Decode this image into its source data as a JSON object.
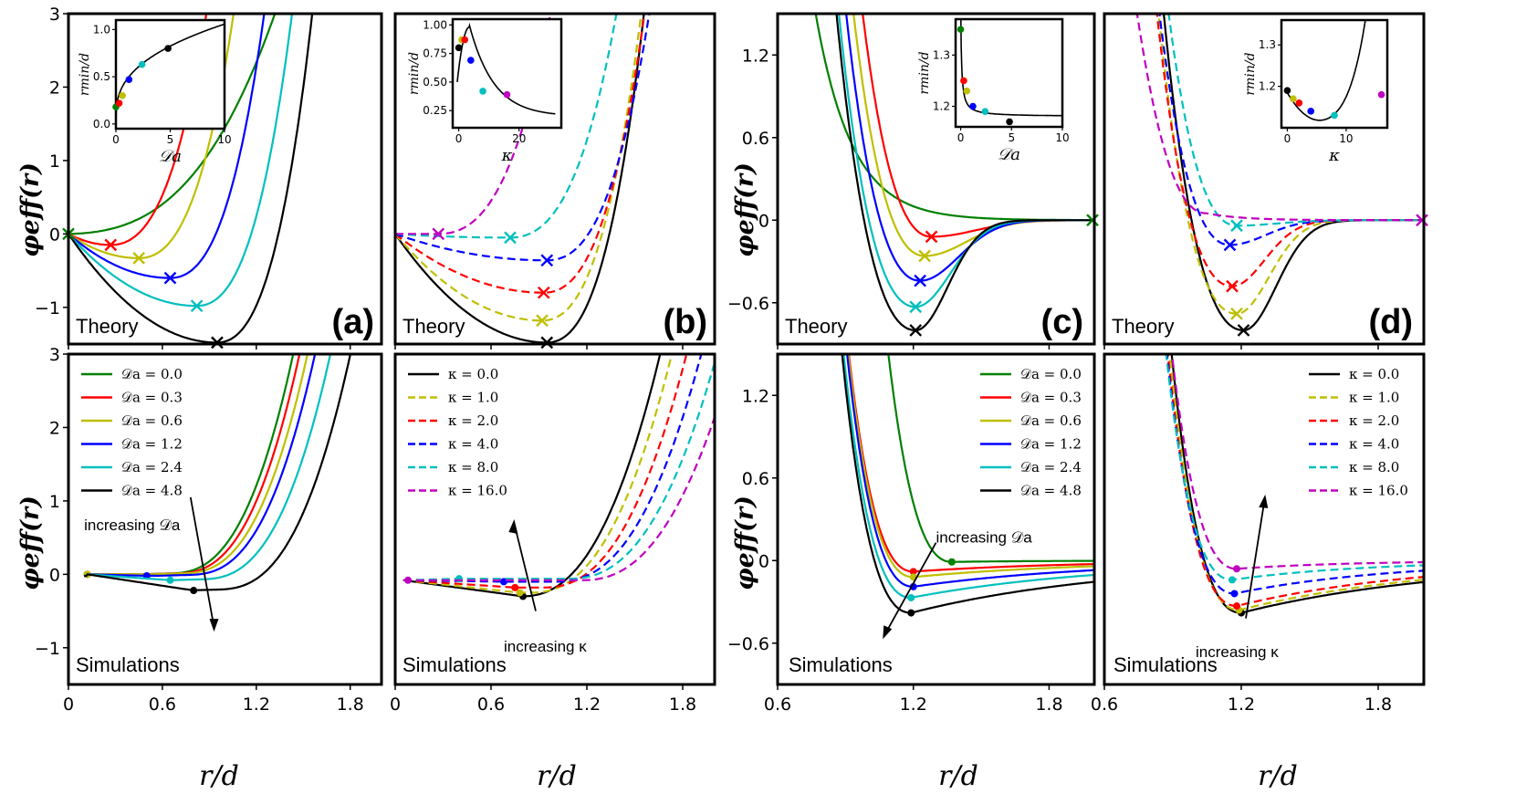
{
  "chart_data": {
    "type": "line",
    "xlabel": "r/d",
    "ylabel": "φeff(r)",
    "inset_ylabel": "rmin/d",
    "panels": [
      {
        "id": "a-theory",
        "label": "(a)",
        "corner": "Theory",
        "param": "Da",
        "xlim": [
          0,
          2.0
        ],
        "ylim": [
          -1.5,
          3
        ],
        "xticks": [
          "0",
          "0.6",
          "1.2",
          "1.8"
        ],
        "yticks": [
          "−1",
          "0",
          "1",
          "2",
          "3"
        ],
        "inset": {
          "xlabel": "𝒟a",
          "xticks": [
            "0",
            "5",
            "10"
          ],
          "yticks": [
            "0.0",
            "0.5",
            "1.0"
          ]
        }
      },
      {
        "id": "b-theory",
        "label": "(b)",
        "corner": "Theory",
        "param": "kappa",
        "xlim": [
          0,
          2.0
        ],
        "ylim": [
          -1.5,
          3
        ],
        "inset": {
          "xlabel": "κ",
          "xticks": [
            "0",
            "20"
          ],
          "yticks": [
            "0.25",
            "0.50",
            "0.75",
            "1.00"
          ]
        }
      },
      {
        "id": "c-theory",
        "label": "(c)",
        "corner": "Theory",
        "param": "Da",
        "xlim": [
          0.6,
          2.0
        ],
        "ylim": [
          -0.9,
          1.5
        ],
        "xticks": [
          "0.6",
          "1.2",
          "1.8"
        ],
        "yticks": [
          "−0.6",
          "0",
          "0.6",
          "1.2"
        ],
        "inset": {
          "xlabel": "𝒟a",
          "xticks": [
            "0",
            "5",
            "10"
          ],
          "yticks": [
            "1.2",
            "1.3"
          ]
        }
      },
      {
        "id": "d-theory",
        "label": "(d)",
        "corner": "Theory",
        "param": "kappa",
        "xlim": [
          0.6,
          2.0
        ],
        "ylim": [
          -0.9,
          1.5
        ],
        "inset": {
          "xlabel": "κ",
          "xticks": [
            "0",
            "10"
          ],
          "yticks": [
            "1.2",
            "1.3"
          ]
        }
      },
      {
        "id": "a-sim",
        "corner": "Simulations",
        "param": "Da",
        "annotation": "increasing 𝒟a",
        "xlim": [
          0,
          2.0
        ],
        "ylim": [
          -1.5,
          3
        ]
      },
      {
        "id": "b-sim",
        "corner": "Simulations",
        "param": "kappa",
        "annotation": "increasing κ",
        "xlim": [
          0,
          2.0
        ],
        "ylim": [
          -1.5,
          3
        ]
      },
      {
        "id": "c-sim",
        "corner": "Simulations",
        "param": "Da",
        "annotation": "increasing 𝒟a",
        "xlim": [
          0.6,
          2.0
        ],
        "ylim": [
          -0.9,
          1.5
        ]
      },
      {
        "id": "d-sim",
        "corner": "Simulations",
        "param": "kappa",
        "annotation": "increasing κ",
        "xlim": [
          0.6,
          2.0
        ],
        "ylim": [
          -0.9,
          1.5
        ]
      }
    ],
    "legend_Da": [
      {
        "name": "𝒟a = 0.0",
        "color": "#008000",
        "dash": false
      },
      {
        "name": "𝒟a = 0.3",
        "color": "#ff0000",
        "dash": false
      },
      {
        "name": "𝒟a = 0.6",
        "color": "#bfbf00",
        "dash": false
      },
      {
        "name": "𝒟a = 1.2",
        "color": "#0000ff",
        "dash": false
      },
      {
        "name": "𝒟a = 2.4",
        "color": "#00bfbf",
        "dash": false
      },
      {
        "name": "𝒟a = 4.8",
        "color": "#000000",
        "dash": false
      }
    ],
    "legend_kappa": [
      {
        "name": "κ = 0.0",
        "color": "#000000",
        "dash": false
      },
      {
        "name": "κ = 1.0",
        "color": "#bfbf00",
        "dash": true
      },
      {
        "name": "κ = 2.0",
        "color": "#ff0000",
        "dash": true
      },
      {
        "name": "κ = 4.0",
        "color": "#0000ff",
        "dash": true
      },
      {
        "name": "κ = 8.0",
        "color": "#00bfbf",
        "dash": true
      },
      {
        "name": "κ = 16.0",
        "color": "#bf00bf",
        "dash": true
      }
    ],
    "theory_minima": {
      "a": [
        [
          0.0,
          0.0
        ],
        [
          0.27,
          -0.15
        ],
        [
          0.45,
          -0.33
        ],
        [
          0.65,
          -0.6
        ],
        [
          0.82,
          -0.98
        ],
        [
          0.95,
          -1.48
        ]
      ],
      "b": [
        [
          0.95,
          -1.48
        ],
        [
          0.92,
          -1.18
        ],
        [
          0.93,
          -0.8
        ],
        [
          0.95,
          -0.36
        ],
        [
          0.72,
          -0.05
        ],
        [
          0.27,
          0.0
        ]
      ],
      "c": [
        [
          2.0,
          0.0
        ],
        [
          1.28,
          -0.12
        ],
        [
          1.25,
          -0.26
        ],
        [
          1.23,
          -0.44
        ],
        [
          1.21,
          -0.63
        ],
        [
          1.21,
          -0.8
        ]
      ],
      "d": [
        [
          1.21,
          -0.8
        ],
        [
          1.18,
          -0.68
        ],
        [
          1.16,
          -0.48
        ],
        [
          1.15,
          -0.18
        ],
        [
          1.18,
          -0.04
        ],
        [
          2.0,
          0.0
        ]
      ]
    },
    "sim_minima": {
      "a": [
        [
          0.12,
          0.0
        ],
        [
          0.12,
          0.0
        ],
        [
          0.12,
          0.0
        ],
        [
          0.5,
          -0.02
        ],
        [
          0.65,
          -0.08
        ],
        [
          0.8,
          -0.22
        ]
      ],
      "b": [
        [
          0.8,
          -0.3
        ],
        [
          0.78,
          -0.25
        ],
        [
          0.75,
          -0.18
        ],
        [
          0.68,
          -0.1
        ],
        [
          0.4,
          -0.06
        ],
        [
          0.08,
          -0.08
        ]
      ],
      "c": [
        [
          1.37,
          -0.01
        ],
        [
          1.2,
          -0.08
        ],
        [
          1.2,
          -0.12
        ],
        [
          1.2,
          -0.19
        ],
        [
          1.19,
          -0.27
        ],
        [
          1.19,
          -0.38
        ]
      ],
      "d": [
        [
          1.2,
          -0.38
        ],
        [
          1.19,
          -0.36
        ],
        [
          1.18,
          -0.33
        ],
        [
          1.17,
          -0.24
        ],
        [
          1.16,
          -0.14
        ],
        [
          1.18,
          -0.06
        ]
      ]
    },
    "insets": {
      "a": {
        "x": [
          0,
          0.3,
          0.6,
          1.2,
          2.4,
          4.8
        ],
        "y": [
          0.18,
          0.22,
          0.3,
          0.47,
          0.63,
          0.8
        ],
        "xlim": [
          0,
          10
        ],
        "ylim": [
          -0.05,
          1.1
        ]
      },
      "b": {
        "x": [
          0,
          1,
          2,
          4,
          8,
          16
        ],
        "y": [
          0.8,
          0.87,
          0.87,
          0.69,
          0.42,
          0.39
        ],
        "xlim": [
          -2,
          34
        ],
        "ylim": [
          0.1,
          1.05
        ]
      },
      "c": {
        "x": [
          0,
          0.3,
          0.6,
          1.2,
          2.4,
          4.8
        ],
        "y": [
          1.35,
          1.25,
          1.23,
          1.2,
          1.19,
          1.17
        ],
        "xlim": [
          -0.5,
          10
        ],
        "ylim": [
          1.16,
          1.37
        ]
      },
      "d": {
        "x": [
          0,
          1,
          2,
          4,
          8,
          16
        ],
        "y": [
          1.19,
          1.17,
          1.16,
          1.14,
          1.13,
          1.18
        ],
        "xlim": [
          -1,
          17
        ],
        "ylim": [
          1.1,
          1.36
        ]
      }
    }
  }
}
